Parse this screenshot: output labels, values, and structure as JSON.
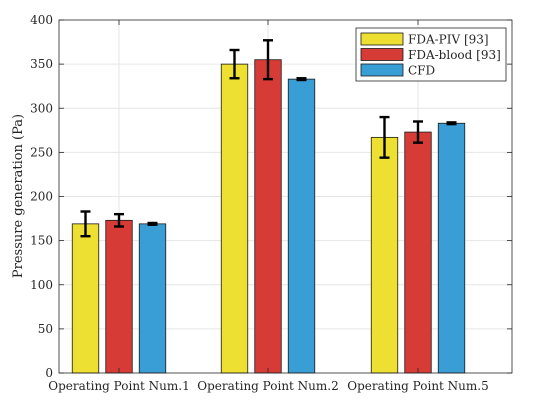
{
  "chart_data": {
    "type": "bar",
    "title": "",
    "xlabel": "",
    "ylabel": "Pressure generation (Pa)",
    "ylim": [
      0,
      400
    ],
    "yticks": [
      0,
      50,
      100,
      150,
      200,
      250,
      300,
      350,
      400
    ],
    "grid": true,
    "legend_position": "top-right",
    "categories": [
      "Operating Point Num.1",
      "Operating Point Num.2",
      "Operating Point Num.5"
    ],
    "series": [
      {
        "name": "FDA-PIV [93]",
        "color": "#EDE032",
        "values": [
          169,
          350,
          267
        ],
        "errors": [
          14,
          16,
          23
        ]
      },
      {
        "name": "FDA-blood [93]",
        "color": "#D63B36",
        "values": [
          173,
          355,
          273
        ],
        "errors": [
          7,
          22,
          12
        ]
      },
      {
        "name": "CFD",
        "color": "#3A9ED6",
        "values": [
          169,
          333,
          283
        ],
        "errors": [
          1,
          1,
          1
        ]
      }
    ]
  }
}
